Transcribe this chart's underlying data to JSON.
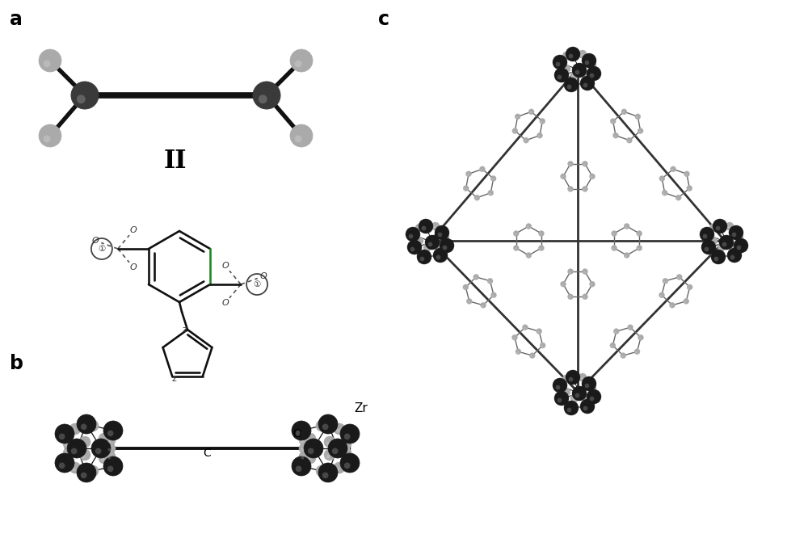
{
  "panel_a_label": "a",
  "panel_b_label": "b",
  "panel_c_label": "c",
  "label_II": "II",
  "label_Zr": "Zr",
  "label_O": "O",
  "label_C": "C",
  "bg_color": "#ffffff",
  "dark_atom_color": "#1a1a1a",
  "gray_atom_color": "#aaaaaa",
  "bond_color": "#111111",
  "dashed_color": "#666666",
  "font_size_panel": 17,
  "green_bond_color": "#228822"
}
